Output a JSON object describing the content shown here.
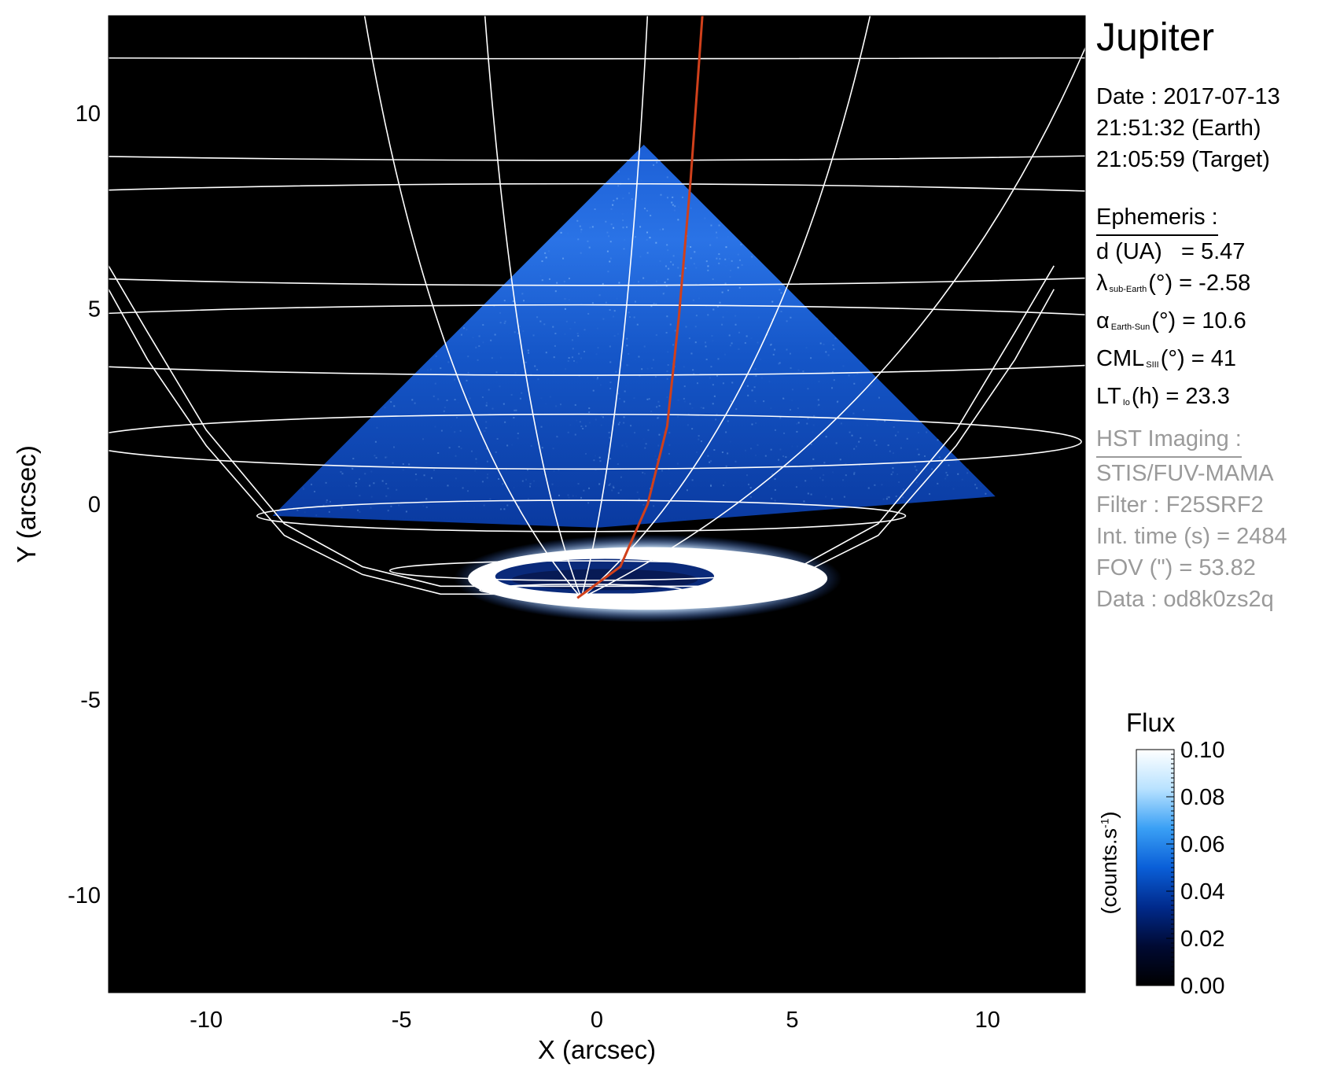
{
  "figure": {
    "title": "Jupiter",
    "date_line": "Date : 2017-07-13",
    "time_earth": "21:51:32 (Earth)",
    "time_target": "21:05:59 (Target)",
    "ephemeris_heading": "Ephemeris :",
    "ephemeris": {
      "d_label": "d (UA)",
      "d_value": "= 5.47",
      "lambda_symbol": "λ",
      "lambda_sub": "sub-Earth",
      "lambda_value": "(°) = -2.58",
      "alpha_symbol": "α",
      "alpha_sub": "Earth-Sun",
      "alpha_value": "(°) = 10.6",
      "cml_symbol": "CML",
      "cml_sub": "SIII",
      "cml_value": "(°) = 41",
      "lt_symbol": "LT",
      "lt_sub": "Io",
      "lt_value": "(h) = 23.3"
    },
    "hst_heading": "HST Imaging :",
    "hst": {
      "instrument": "STIS/FUV-MAMA",
      "filter": "Filter : F25SRF2",
      "int_time": "Int. time (s) = 2484",
      "fov": "FOV (\") = 53.82",
      "data": "Data : od8k0zs2q"
    },
    "colorbar": {
      "title": "Flux",
      "unit_main": "(counts.s",
      "unit_sup": "-1",
      "unit_close": ")",
      "ticks": [
        "0.00",
        "0.02",
        "0.04",
        "0.06",
        "0.08",
        "0.10"
      ],
      "colors": [
        "#000000",
        "#000a33",
        "#002a8c",
        "#0a5fd8",
        "#3aa0f5",
        "#b8e2ff",
        "#ffffff"
      ]
    },
    "colors": {
      "grid": "#ffffff",
      "io_footprint": "#d0401b",
      "background": "#000000",
      "emission": "#1e6ee8",
      "aurora": "#ffffff"
    }
  },
  "chart_data": {
    "type": "heatmap",
    "xlabel": "X (arcsec)",
    "ylabel": "Y (arcsec)",
    "xlim": [
      -12.5,
      12.5
    ],
    "ylim": [
      -12.5,
      12.5
    ],
    "xticks": [
      -10,
      -5,
      0,
      5,
      10
    ],
    "yticks": [
      -10,
      -5,
      0,
      5,
      10
    ],
    "tick_labels_x": [
      "-10",
      "-5",
      "0",
      "5",
      "10"
    ],
    "tick_labels_y": [
      "-10",
      "-5",
      "0",
      "5",
      "10"
    ],
    "pole": [
      -0.4,
      -2.4
    ],
    "latitude_circles": [
      {
        "cy": 12.0,
        "rx": 48,
        "ry": 0.6
      },
      {
        "cy": 10.9,
        "rx": 40,
        "ry": 2.1
      },
      {
        "cy": 6.9,
        "rx": 25,
        "ry": 1.3
      },
      {
        "cy": 4.2,
        "rx": 18.6,
        "ry": 0.9
      },
      {
        "cy": 1.6,
        "rx": 12.8,
        "ry": 0.7
      },
      {
        "cy": -0.3,
        "rx": 8.3,
        "ry": 0.4
      },
      {
        "cy": -1.7,
        "rx": 4.9,
        "ry": 0.25
      },
      {
        "cy": -2.2,
        "rx": 2.6,
        "ry": 0.15
      }
    ],
    "limb_left": [
      [
        -12.5,
        6.1
      ],
      [
        -11.5,
        4.4
      ],
      [
        -10.0,
        1.9
      ],
      [
        -8.0,
        -0.5
      ],
      [
        -6.0,
        -1.6
      ],
      [
        -4.0,
        -2.1
      ]
    ],
    "limb_right": [
      [
        -12.5,
        5.5
      ],
      [
        -11.5,
        3.7
      ],
      [
        -10.0,
        1.5
      ],
      [
        -8.0,
        -0.8
      ],
      [
        -6.0,
        -1.8
      ],
      [
        -4.0,
        -2.3
      ]
    ],
    "meridian_offsets": [
      -3.6,
      -1.6,
      1.1,
      4.8,
      8.6
    ],
    "io_footprint": [
      [
        -0.5,
        -2.4
      ],
      [
        0.6,
        -1.6
      ],
      [
        1.3,
        0.0
      ],
      [
        1.8,
        2.0
      ],
      [
        2.1,
        4.8
      ],
      [
        2.4,
        8.3
      ],
      [
        2.7,
        12.5
      ]
    ],
    "observed_region": [
      [
        1.2,
        9.2
      ],
      [
        -8.3,
        -0.3
      ],
      [
        0.0,
        -0.6
      ],
      [
        10.2,
        0.2
      ]
    ],
    "main_oval": {
      "cx": 1.3,
      "cy": -1.9,
      "rx": 4.6,
      "ry": 0.8
    },
    "inner_oval": {
      "cx": 0.2,
      "cy": -1.85,
      "rx": 2.8,
      "ry": 0.45
    },
    "colorbar_range": [
      0.0,
      0.1
    ]
  }
}
